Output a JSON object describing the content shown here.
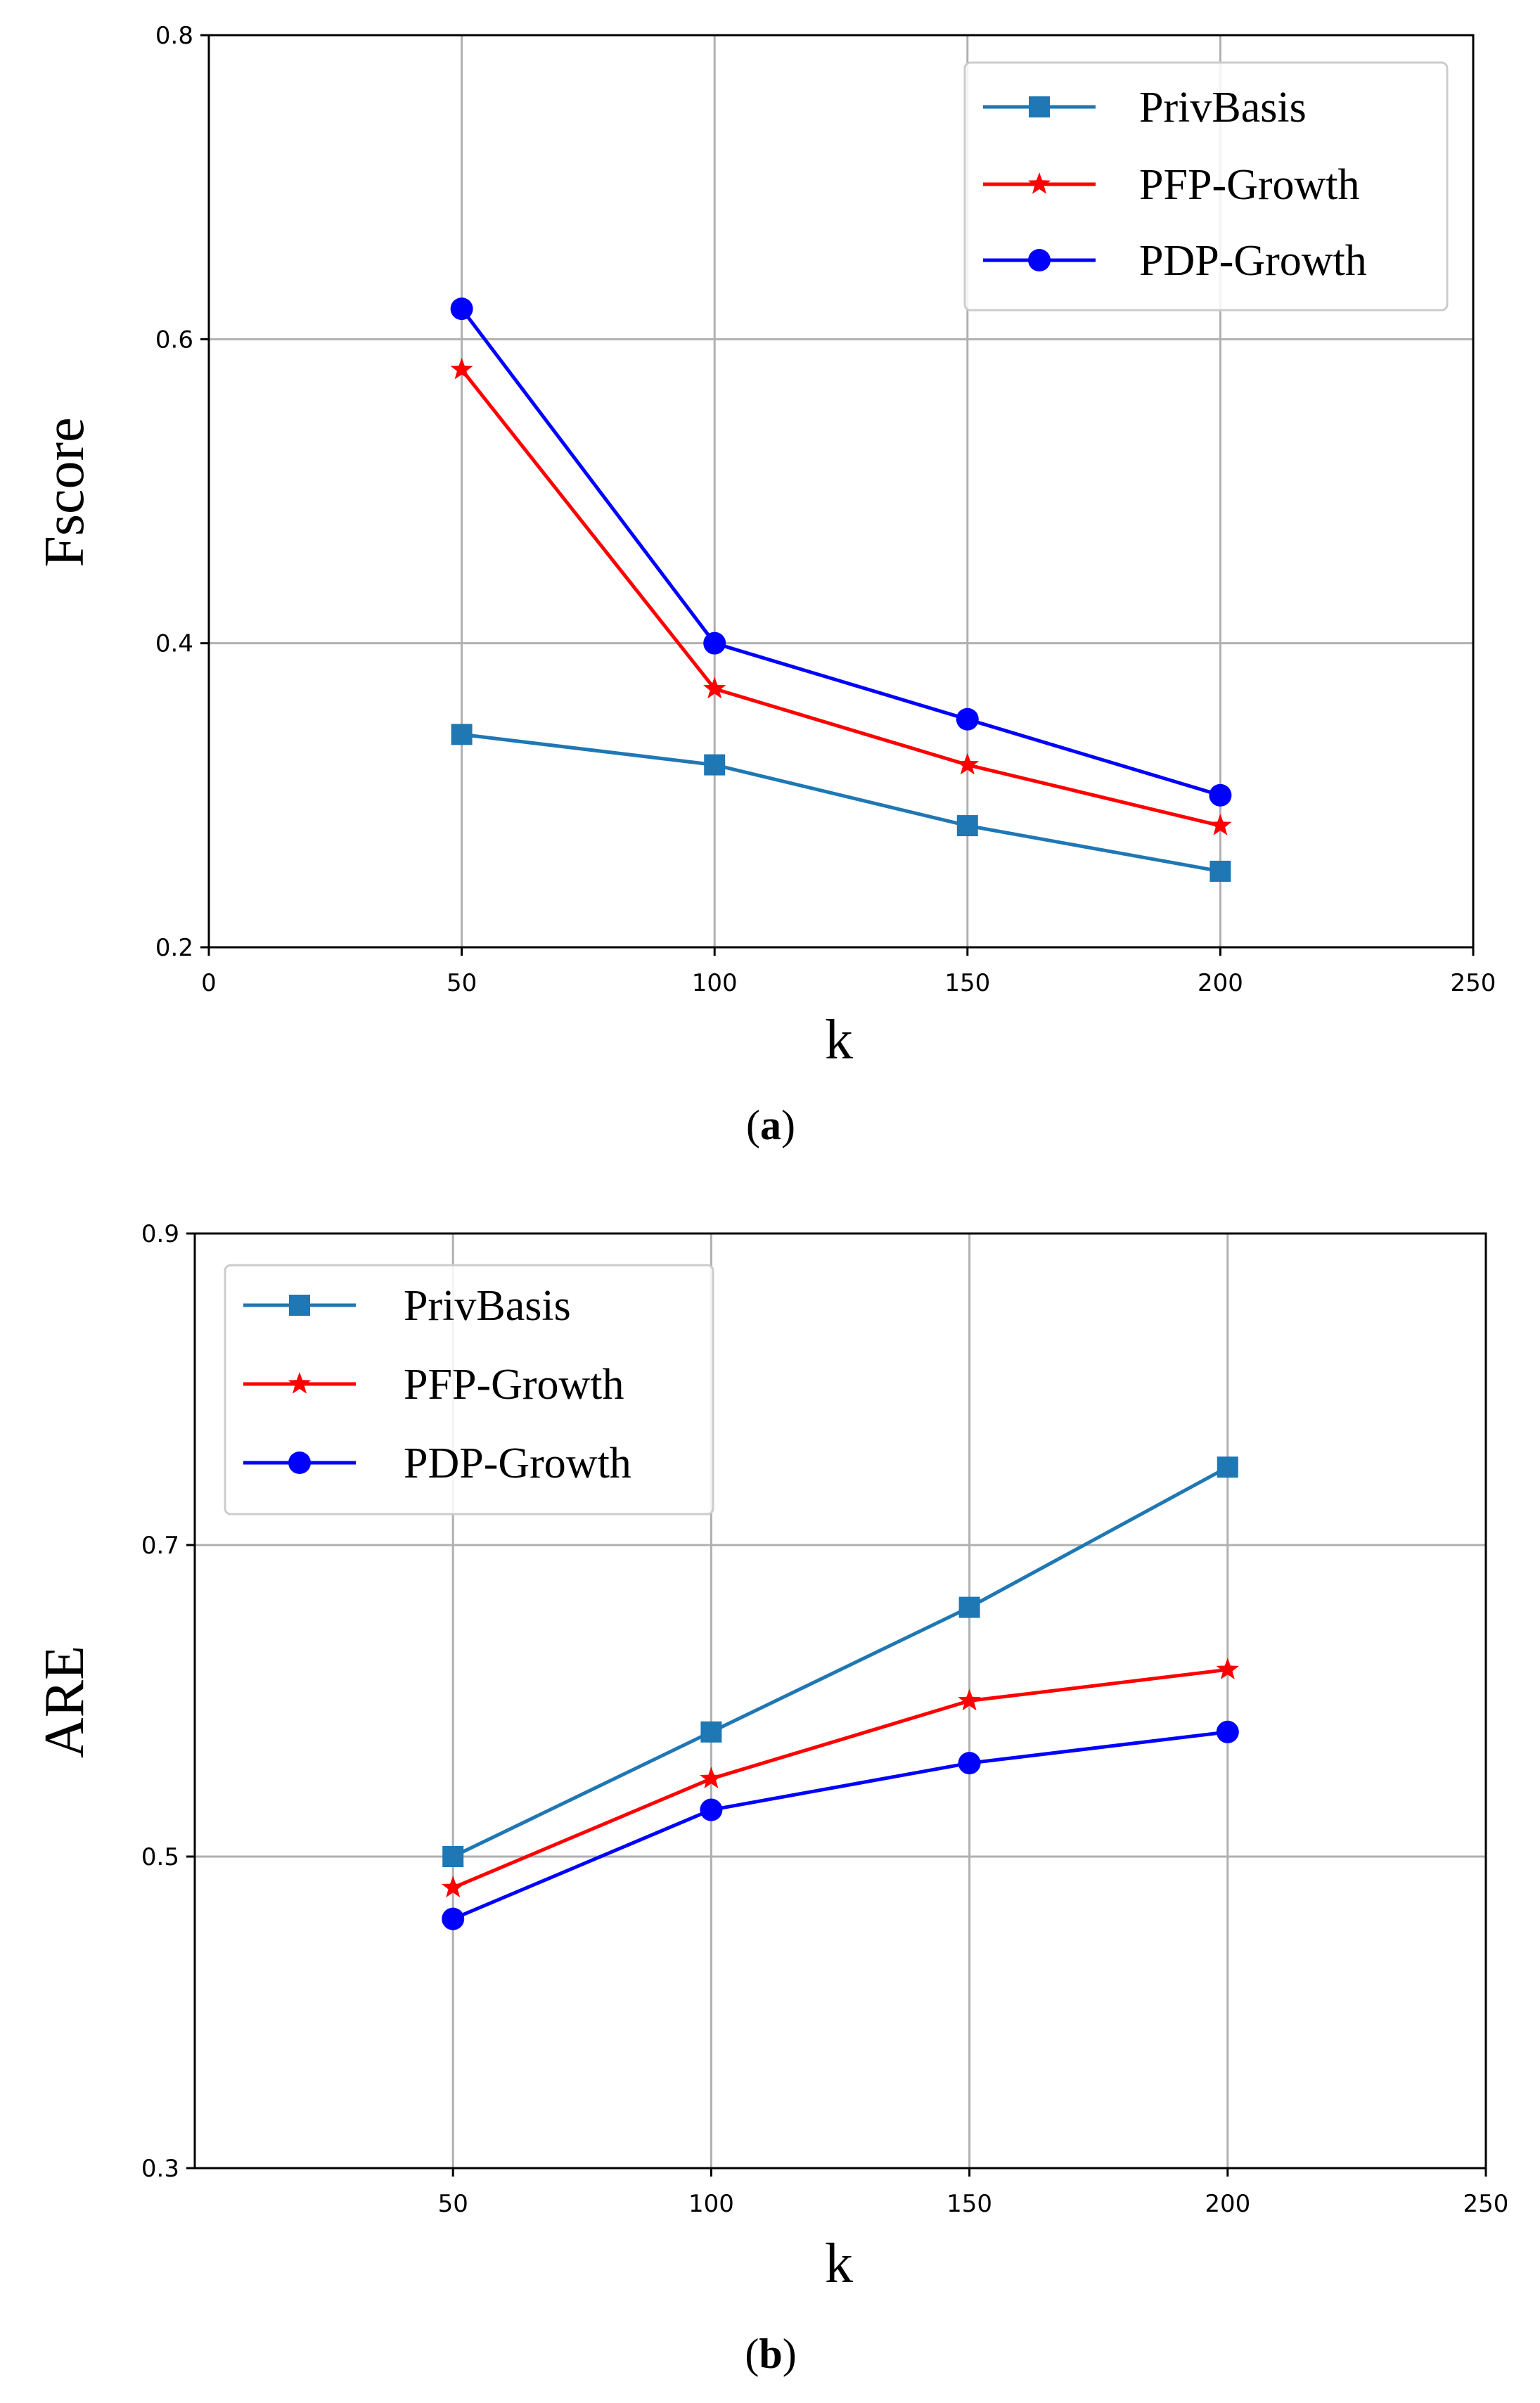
{
  "series_styles": [
    {
      "name": "PrivBasis",
      "color": "#1f77b4",
      "marker": "square"
    },
    {
      "name": "PFP-Growth",
      "color": "#ff0000",
      "marker": "star"
    },
    {
      "name": "PDP-Growth",
      "color": "#0000ff",
      "marker": "circle"
    }
  ],
  "chart_data": [
    {
      "type": "line",
      "caption_letter": "a",
      "xlabel": "k",
      "ylabel": "Fscore",
      "xlim": [
        0,
        250
      ],
      "ylim": [
        0.2,
        0.8
      ],
      "xticks": [
        0,
        50,
        100,
        150,
        200,
        250
      ],
      "xtick_labels": [
        "0",
        "50",
        "100",
        "150",
        "200",
        "250"
      ],
      "yticks": [
        0.2,
        0.4,
        0.6,
        0.8
      ],
      "ytick_labels": [
        "0.2",
        "0.4",
        "0.6",
        "0.8"
      ],
      "grid": true,
      "legend_position": "top-right",
      "x": [
        50,
        100,
        150,
        200
      ],
      "series": [
        {
          "name": "PrivBasis",
          "values": [
            0.34,
            0.32,
            0.28,
            0.25
          ]
        },
        {
          "name": "PFP-Growth",
          "values": [
            0.58,
            0.37,
            0.32,
            0.28
          ]
        },
        {
          "name": "PDP-Growth",
          "values": [
            0.62,
            0.4,
            0.35,
            0.3
          ]
        }
      ]
    },
    {
      "type": "line",
      "caption_letter": "b",
      "xlabel": "k",
      "ylabel": "ARE",
      "xlim": [
        0,
        250
      ],
      "ylim": [
        0.3,
        0.9
      ],
      "xticks": [
        50,
        100,
        150,
        200,
        250
      ],
      "xtick_labels": [
        "50",
        "100",
        "150",
        "200",
        "250"
      ],
      "yticks": [
        0.3,
        0.5,
        0.7,
        0.9
      ],
      "ytick_labels": [
        "0.3",
        "0.5",
        "0.7",
        "0.9"
      ],
      "grid": true,
      "legend_position": "top-left",
      "x": [
        50,
        100,
        150,
        200
      ],
      "series": [
        {
          "name": "PrivBasis",
          "values": [
            0.5,
            0.58,
            0.66,
            0.75
          ]
        },
        {
          "name": "PFP-Growth",
          "values": [
            0.48,
            0.55,
            0.6,
            0.62
          ]
        },
        {
          "name": "PDP-Growth",
          "values": [
            0.46,
            0.53,
            0.56,
            0.58
          ]
        }
      ]
    }
  ]
}
